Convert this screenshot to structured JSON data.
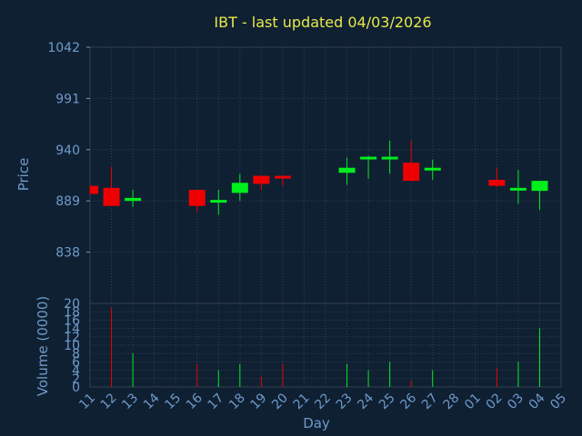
{
  "title": "IBT - last updated 04/03/2026",
  "colors": {
    "background": "#0f2033",
    "grid": "#33414f",
    "axis_text": "#6f9ac8",
    "title": "#e8e84a",
    "up": "#00ee1c",
    "down": "#ee0000"
  },
  "chart_data": [
    {
      "type": "candlestick",
      "ylabel": "Price",
      "ylim": [
        787,
        1042
      ],
      "y_ticks": [
        "1042",
        "991",
        "940",
        "889",
        "838"
      ],
      "categories": [
        "11",
        "12",
        "13",
        "14",
        "15",
        "16",
        "17",
        "18",
        "19",
        "20",
        "21",
        "22",
        "23",
        "24",
        "25",
        "26",
        "27",
        "28",
        "01",
        "02",
        "03",
        "04",
        "05"
      ],
      "candles": [
        {
          "day": "11",
          "open": 904,
          "close": 896,
          "high": 904,
          "low": 896
        },
        {
          "day": "12",
          "open": 902,
          "close": 884,
          "high": 923,
          "low": 884
        },
        {
          "day": "13",
          "open": 889,
          "close": 892,
          "high": 900,
          "low": 883
        },
        {
          "day": "16",
          "open": 900,
          "close": 884,
          "high": 900,
          "low": 878
        },
        {
          "day": "17",
          "open": 889,
          "close": 890,
          "high": 900,
          "low": 875
        },
        {
          "day": "18",
          "open": 897,
          "close": 907,
          "high": 916,
          "low": 889
        },
        {
          "day": "19",
          "open": 914,
          "close": 906,
          "high": 914,
          "low": 900
        },
        {
          "day": "20",
          "open": 914,
          "close": 913,
          "high": 914,
          "low": 904
        },
        {
          "day": "23",
          "open": 917,
          "close": 922,
          "high": 932,
          "low": 905
        },
        {
          "day": "24",
          "open": 932,
          "close": 933,
          "high": 934,
          "low": 911
        },
        {
          "day": "25",
          "open": 932,
          "close": 933,
          "high": 949,
          "low": 916
        },
        {
          "day": "26",
          "open": 927,
          "close": 909,
          "high": 949,
          "low": 909
        },
        {
          "day": "27",
          "open": 920,
          "close": 922,
          "high": 930,
          "low": 910
        },
        {
          "day": "02",
          "open": 910,
          "close": 904,
          "high": 922,
          "low": 903
        },
        {
          "day": "03",
          "open": 900,
          "close": 902,
          "high": 920,
          "low": 886
        },
        {
          "day": "04",
          "open": 899,
          "close": 909,
          "high": 909,
          "low": 880
        }
      ]
    },
    {
      "type": "bar",
      "ylabel": "Volume (0000)",
      "xlabel": "Day",
      "ylim": [
        0,
        20
      ],
      "y_ticks": [
        "20",
        "18",
        "16",
        "14",
        "12",
        "10",
        "8",
        "6",
        "4",
        "2",
        "0"
      ],
      "categories": [
        "11",
        "12",
        "13",
        "14",
        "15",
        "16",
        "17",
        "18",
        "19",
        "20",
        "21",
        "22",
        "23",
        "24",
        "25",
        "26",
        "27",
        "28",
        "01",
        "02",
        "03",
        "04",
        "05"
      ],
      "bars": [
        {
          "day": "11",
          "value": 0,
          "direction": "down"
        },
        {
          "day": "12",
          "value": 19,
          "direction": "down"
        },
        {
          "day": "13",
          "value": 8,
          "direction": "up"
        },
        {
          "day": "16",
          "value": 5.5,
          "direction": "down"
        },
        {
          "day": "17",
          "value": 4,
          "direction": "up"
        },
        {
          "day": "18",
          "value": 5.5,
          "direction": "up"
        },
        {
          "day": "19",
          "value": 2.5,
          "direction": "down"
        },
        {
          "day": "20",
          "value": 5.5,
          "direction": "down"
        },
        {
          "day": "23",
          "value": 5.5,
          "direction": "up"
        },
        {
          "day": "24",
          "value": 4,
          "direction": "up"
        },
        {
          "day": "25",
          "value": 6,
          "direction": "up"
        },
        {
          "day": "26",
          "value": 1.5,
          "direction": "down"
        },
        {
          "day": "27",
          "value": 4,
          "direction": "up"
        },
        {
          "day": "02",
          "value": 4.5,
          "direction": "down"
        },
        {
          "day": "03",
          "value": 6,
          "direction": "up"
        },
        {
          "day": "04",
          "value": 14,
          "direction": "up"
        }
      ]
    }
  ]
}
